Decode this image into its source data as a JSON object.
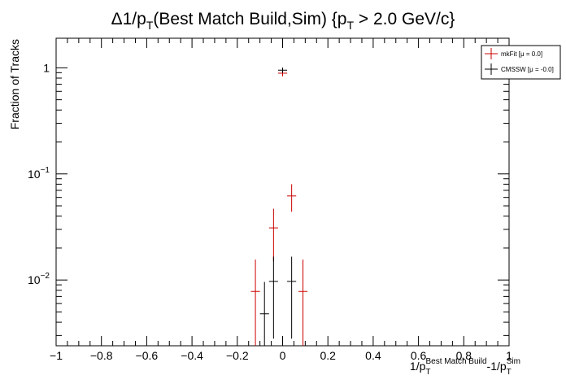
{
  "chart_data": {
    "type": "scatter",
    "title": {
      "prefix": "Δ1/p",
      "sub1": "T",
      "mid": "(Best Match Build,Sim) {p",
      "sub2": "T",
      "suffix": " > 2.0 GeV/c}"
    },
    "xlabel": {
      "a": "1/p",
      "a_sub": "T",
      "a_sup": "Best Match Build",
      "b": "-1/p",
      "b_sub": "T",
      "b_sup": "Sim"
    },
    "ylabel": "Fraction of Tracks",
    "xlim": [
      -1,
      1
    ],
    "ylim": [
      0.0024,
      1.9
    ],
    "y_scale": "log",
    "grid": false,
    "legend_position": "top-right",
    "x_ticks": [
      "−1",
      "−0.8",
      "−0.6",
      "−0.4",
      "−0.2",
      "0",
      "0.2",
      "0.4",
      "0.6",
      "0.8",
      "1"
    ],
    "y_ticks": [
      {
        "base": "10",
        "exp": "−2",
        "value": 0.01
      },
      {
        "base": "10",
        "exp": "−1",
        "value": 0.1
      },
      {
        "base": "1",
        "exp": "",
        "value": 1
      }
    ],
    "series": [
      {
        "name": "mkFit  [μ =  0.0]",
        "color": "#cc0000",
        "bin_half_width": 0.02,
        "points": [
          {
            "x": -0.12,
            "y": 0.0078,
            "err": 0.0078
          },
          {
            "x": -0.04,
            "y": 0.031,
            "err": 0.016
          },
          {
            "x": 0.0,
            "y": 0.89,
            "err": 0.06
          },
          {
            "x": 0.04,
            "y": 0.062,
            "err": 0.018
          },
          {
            "x": 0.09,
            "y": 0.0078,
            "err": 0.0078
          }
        ]
      },
      {
        "name": "CMSSW  [μ = -0.0]",
        "color": "#000000",
        "bin_half_width": 0.02,
        "points": [
          {
            "x": -0.08,
            "y": 0.0048,
            "err": 0.0048
          },
          {
            "x": -0.04,
            "y": 0.0097,
            "err": 0.0069
          },
          {
            "x": 0.0,
            "y": 0.95,
            "err": 0.055
          },
          {
            "x": 0.04,
            "y": 0.0097,
            "err": 0.0069
          }
        ]
      }
    ]
  }
}
